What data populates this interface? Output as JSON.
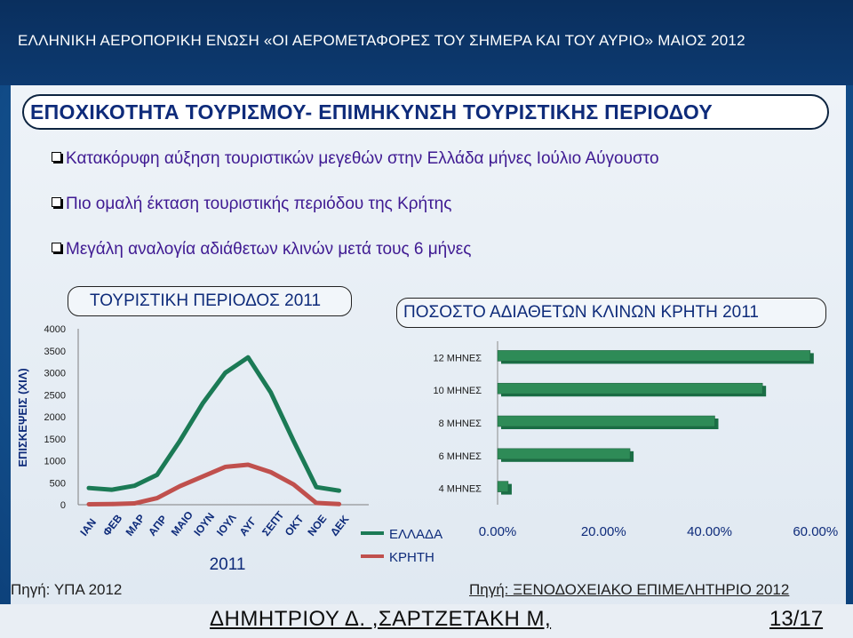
{
  "header": {
    "title": "ΕΛΛΗΝΙΚΗ ΑΕΡΟΠΟΡΙΚΗ ΕΝΩΣΗ «ΟΙ ΑΕΡΟΜΕΤΑΦΟΡΕΣ ΤΟΥ ΣΗΜΕΡΑ ΚΑΙ ΤΟΥ ΑΥΡΙΟ» ΜΑΙΟΣ 2012"
  },
  "banner": {
    "title": "ΕΠΟΧΙΚΟΤΗΤΑ ΤΟΥΡΙΣΜΟΥ- ΕΠΙΜΗΚΥΝΣΗ ΤΟΥΡΙΣΤΙΚΗΣ ΠΕΡΙΟΔΟΥ"
  },
  "bullets": [
    "Κατακόρυφη αύξηση τουριστικών μεγεθών  στην Ελλάδα μήνες Ιούλιο Αύγουστο",
    "Πιο ομαλή έκταση τουριστικής περιόδου  της Κρήτης",
    "Μεγάλη αναλογία αδιάθετων κλινών μετά τους 6 μήνες"
  ],
  "colors": {
    "greece": "#1b7a55",
    "crete": "#c0504d",
    "bar": "#2e8b57",
    "navy": "#0e2b7a"
  },
  "chart_data": [
    {
      "type": "line",
      "title": "ΤΟΥΡΙΣΤΙΚΗ ΠΕΡΙΟΔΟΣ 2011",
      "ylabel": "ΕΠΙΣΚΕΨΕΙΣ (ΧΙΛ)",
      "xlabel": "2011",
      "ylim": [
        0,
        4000
      ],
      "yticks": [
        "0",
        "500",
        "1000",
        "1500",
        "2000",
        "2500",
        "3000",
        "3500",
        "4000"
      ],
      "categories": [
        "ΙΑΝ",
        "ΦΕΒ",
        "ΜΑΡ",
        "ΑΠΡ",
        "ΜΑΙΟ",
        "ΙΟΥΝ",
        "ΙΟΥΛ",
        "ΑΥΓ",
        "ΣΕΠΤ",
        "ΟΚΤ",
        "ΝΟΕ",
        "ΔΕΚ"
      ],
      "series": [
        {
          "name": "ΕΛΛΑΔΑ",
          "values": [
            380,
            340,
            430,
            680,
            1450,
            2300,
            3000,
            3350,
            2550,
            1450,
            400,
            320
          ]
        },
        {
          "name": "ΚΡΗΤΗ",
          "values": [
            10,
            15,
            30,
            150,
            420,
            640,
            860,
            910,
            740,
            460,
            40,
            15
          ]
        }
      ],
      "legend": "bottom-right",
      "source": "Πηγή: ΥΠΑ 2012"
    },
    {
      "type": "bar",
      "orientation": "horizontal",
      "title": "ΠΟΣΟΣΤΟ ΑΔΙΑΘΕΤΩΝ ΚΛΙΝΩΝ ΚΡΗΤΗ 2011",
      "categories": [
        "12  ΜΗΝΕΣ",
        "10 ΜΗΝΕΣ",
        "8 ΜΗΝΕΣ",
        "6 ΜΗΝΕΣ",
        "4 ΜΗΝΕΣ"
      ],
      "values": [
        0.59,
        0.5,
        0.41,
        0.25,
        0.02
      ],
      "xlim": [
        0,
        0.6
      ],
      "xticks": [
        "0.00%",
        "20.00%",
        "40.00%",
        "60.00%"
      ],
      "source": "Πηγή: ΞΕΝΟΔΟΧΕΙΑΚΟ ΕΠΙΜΕΛΗΤΗΡΙΟ 2012"
    }
  ],
  "footer": {
    "author": "ΔΗΜΗΤΡΙΟΥ Δ. ,ΣΑΡΤΖΕΤΑΚΗ Μ,",
    "page": "13/17"
  }
}
